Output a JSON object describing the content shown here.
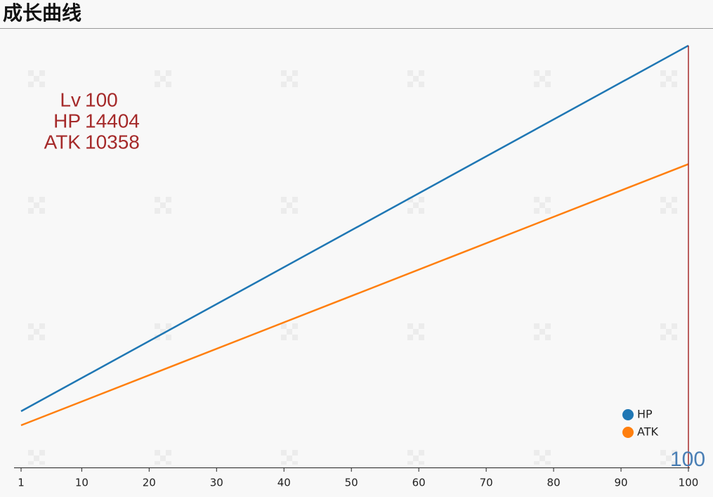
{
  "chart_data": {
    "type": "line",
    "title": "成长曲线",
    "x": [
      1,
      100
    ],
    "series": [
      {
        "name": "HP",
        "color": "#1f77b4",
        "values": [
          1920,
          14404
        ]
      },
      {
        "name": "ATK",
        "color": "#ff7f0e",
        "values": [
          1440,
          10358
        ]
      }
    ],
    "xlim": [
      1,
      100
    ],
    "xticks": [
      1,
      10,
      20,
      30,
      40,
      50,
      60,
      70,
      80,
      90,
      100
    ],
    "ylim": [
      0,
      15000
    ],
    "legend": "lower right",
    "tooltip_label": "Lv",
    "cursor_color": "#a52a2a"
  }
}
